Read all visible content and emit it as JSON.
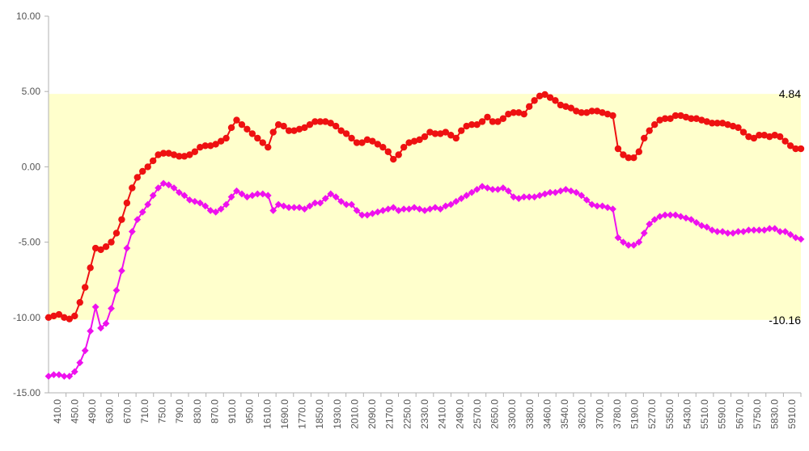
{
  "chart_data": {
    "type": "line",
    "title": "",
    "xlabel": "",
    "ylabel": "",
    "ylim": [
      -15,
      10
    ],
    "y_ticks": [
      "10.00",
      "5.00",
      "0.00",
      "-5.00",
      "-10.00",
      "-15.00"
    ],
    "x_tick_labels": [
      "410.0",
      "450.0",
      "490.0",
      "630.0",
      "670.0",
      "710.0",
      "750.0",
      "790.0",
      "830.0",
      "870.0",
      "910.0",
      "950.0",
      "1610.0",
      "1690.0",
      "1770.0",
      "1850.0",
      "1930.0",
      "2010.0",
      "2090.0",
      "2170.0",
      "2250.0",
      "2330.0",
      "2410.0",
      "2490.0",
      "2570.0",
      "2650.0",
      "3300.0",
      "3380.0",
      "3460.0",
      "3540.0",
      "3620.0",
      "3700.0",
      "3780.0",
      "5190.0",
      "5270.0",
      "5350.0",
      "5430.0",
      "5510.0",
      "5590.0",
      "5670.0",
      "5750.0",
      "5830.0",
      "5910.0"
    ],
    "band": {
      "upper": 4.84,
      "lower": -10.16,
      "upper_label": "4.84",
      "lower_label": "-10.16",
      "color": "#ffffcc"
    },
    "grid": false,
    "legend": "none",
    "series": [
      {
        "color": "#ee1111",
        "marker": "circle",
        "values": [
          -10.0,
          -9.9,
          -9.8,
          -10.0,
          -10.1,
          -9.9,
          -9.0,
          -8.0,
          -6.7,
          -5.4,
          -5.5,
          -5.3,
          -5.0,
          -4.4,
          -3.5,
          -2.4,
          -1.4,
          -0.7,
          -0.3,
          0.0,
          0.4,
          0.8,
          0.9,
          0.9,
          0.8,
          0.7,
          0.7,
          0.8,
          1.0,
          1.3,
          1.4,
          1.4,
          1.5,
          1.7,
          1.9,
          2.6,
          3.1,
          2.8,
          2.5,
          2.2,
          1.9,
          1.6,
          1.3,
          2.3,
          2.8,
          2.7,
          2.4,
          2.4,
          2.5,
          2.6,
          2.8,
          3.0,
          3.0,
          3.0,
          2.9,
          2.7,
          2.4,
          2.2,
          1.9,
          1.6,
          1.6,
          1.8,
          1.7,
          1.5,
          1.3,
          1.0,
          0.5,
          0.8,
          1.3,
          1.6,
          1.7,
          1.8,
          2.0,
          2.3,
          2.2,
          2.2,
          2.3,
          2.1,
          1.9,
          2.4,
          2.7,
          2.8,
          2.8,
          3.0,
          3.3,
          3.0,
          3.0,
          3.2,
          3.5,
          3.6,
          3.6,
          3.5,
          4.0,
          4.4,
          4.7,
          4.8,
          4.6,
          4.4,
          4.1,
          4.0,
          3.9,
          3.7,
          3.6,
          3.6,
          3.7,
          3.7,
          3.6,
          3.5,
          3.4,
          1.2,
          0.8,
          0.6,
          0.6,
          1.0,
          1.9,
          2.4,
          2.8,
          3.1,
          3.2,
          3.2,
          3.4,
          3.4,
          3.3,
          3.2,
          3.2,
          3.1,
          3.0,
          2.9,
          2.9,
          2.9,
          2.8,
          2.7,
          2.6,
          2.3,
          2.0,
          1.9,
          2.1,
          2.1,
          2.0,
          2.1,
          2.0,
          1.7,
          1.4,
          1.2,
          1.2
        ]
      },
      {
        "color": "#ee11ee",
        "marker": "diamond",
        "values": [
          -13.9,
          -13.8,
          -13.8,
          -13.9,
          -13.9,
          -13.6,
          -13.0,
          -12.2,
          -10.9,
          -9.3,
          -10.7,
          -10.4,
          -9.4,
          -8.2,
          -6.9,
          -5.4,
          -4.3,
          -3.5,
          -3.0,
          -2.5,
          -1.9,
          -1.4,
          -1.1,
          -1.2,
          -1.4,
          -1.7,
          -1.9,
          -2.2,
          -2.3,
          -2.4,
          -2.6,
          -2.9,
          -3.0,
          -2.8,
          -2.5,
          -2.0,
          -1.6,
          -1.8,
          -2.0,
          -1.9,
          -1.8,
          -1.8,
          -1.9,
          -2.9,
          -2.5,
          -2.6,
          -2.7,
          -2.7,
          -2.7,
          -2.8,
          -2.6,
          -2.4,
          -2.4,
          -2.1,
          -1.8,
          -2.0,
          -2.3,
          -2.5,
          -2.5,
          -2.9,
          -3.2,
          -3.2,
          -3.1,
          -3.0,
          -2.9,
          -2.8,
          -2.7,
          -2.9,
          -2.8,
          -2.8,
          -2.7,
          -2.8,
          -2.9,
          -2.8,
          -2.7,
          -2.8,
          -2.6,
          -2.5,
          -2.3,
          -2.1,
          -1.9,
          -1.7,
          -1.5,
          -1.3,
          -1.4,
          -1.5,
          -1.5,
          -1.4,
          -1.6,
          -2.0,
          -2.1,
          -2.0,
          -2.0,
          -2.0,
          -1.9,
          -1.8,
          -1.7,
          -1.7,
          -1.6,
          -1.5,
          -1.6,
          -1.7,
          -1.9,
          -2.2,
          -2.5,
          -2.6,
          -2.6,
          -2.7,
          -2.8,
          -4.7,
          -5.0,
          -5.2,
          -5.2,
          -5.0,
          -4.4,
          -3.8,
          -3.5,
          -3.3,
          -3.2,
          -3.2,
          -3.2,
          -3.3,
          -3.4,
          -3.5,
          -3.7,
          -3.9,
          -4.0,
          -4.2,
          -4.3,
          -4.3,
          -4.4,
          -4.4,
          -4.3,
          -4.3,
          -4.2,
          -4.2,
          -4.2,
          -4.2,
          -4.1,
          -4.1,
          -4.3,
          -4.3,
          -4.5,
          -4.7,
          -4.8
        ]
      }
    ]
  }
}
